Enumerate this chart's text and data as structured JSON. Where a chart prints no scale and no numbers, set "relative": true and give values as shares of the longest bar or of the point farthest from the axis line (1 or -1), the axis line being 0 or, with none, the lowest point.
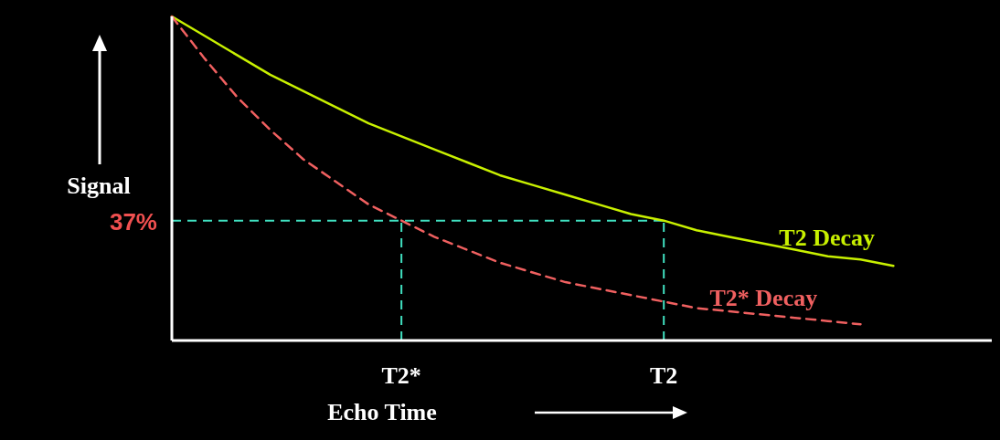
{
  "chart_data": {
    "type": "line",
    "relative": true,
    "xlabel": "Echo Time",
    "ylabel": "Signal",
    "categories": [
      null,
      null,
      null,
      null,
      null,
      null,
      null,
      "T2*",
      null,
      null,
      null,
      null,
      null,
      null,
      null,
      "T2",
      null,
      null,
      null,
      null,
      null,
      null,
      null,
      null,
      null,
      null
    ],
    "series": [
      {
        "name": "T2 Decay",
        "color": "#c8f000",
        "line_style": "solid",
        "values": [
          1,
          0.94,
          0.88,
          0.82,
          0.77,
          0.72,
          0.67,
          0.63,
          0.59,
          0.55,
          0.51,
          0.48,
          0.45,
          0.42,
          0.39,
          0.37,
          0.34,
          0.32,
          0.3,
          0.28,
          0.26,
          0.25,
          0.23,
          null,
          null,
          null
        ]
      },
      {
        "name": "T2* Decay",
        "color": "#f06060",
        "line_style": "dashed",
        "values": [
          1,
          0.87,
          0.75,
          0.65,
          0.56,
          0.49,
          0.42,
          0.37,
          0.32,
          0.28,
          0.24,
          0.21,
          0.18,
          0.16,
          0.14,
          0.12,
          0.1,
          0.09,
          0.08,
          0.07,
          0.06,
          0.05,
          null,
          null,
          null,
          null
        ]
      }
    ],
    "ref_lines": [
      {
        "axis": "y",
        "value": 0.37,
        "label": "37%",
        "color": "#40e0c0",
        "line_style": "dashed"
      },
      {
        "axis": "x",
        "value": "T2*",
        "color": "#40e0c0",
        "line_style": "dashed"
      },
      {
        "axis": "x",
        "value": "T2",
        "color": "#40e0c0",
        "line_style": "dashed"
      }
    ]
  }
}
